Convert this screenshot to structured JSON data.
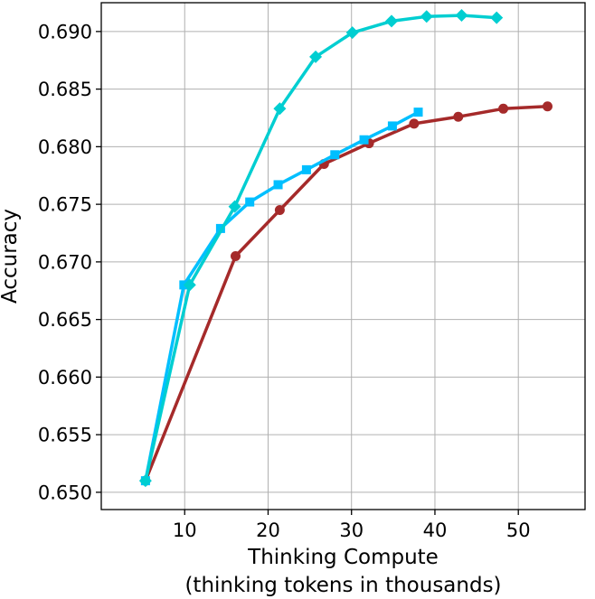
{
  "chart_data": {
    "type": "line",
    "xlabel": "Thinking Compute",
    "xlabel_line2": "(thinking tokens in thousands)",
    "ylabel": "Accuracy",
    "xlim": [
      0,
      58
    ],
    "ylim": [
      0.6485,
      0.6925
    ],
    "xticks": [
      10,
      20,
      30,
      40,
      50
    ],
    "yticks": [
      0.65,
      0.655,
      0.66,
      0.665,
      0.67,
      0.675,
      0.68,
      0.685,
      0.69
    ],
    "ytick_labels": [
      "0.650",
      "0.655",
      "0.660",
      "0.665",
      "0.670",
      "0.675",
      "0.680",
      "0.685",
      "0.690"
    ],
    "grid": true,
    "series": [
      {
        "color": "#a52a2a",
        "marker": "circle",
        "x": [
          5.3,
          16.1,
          21.4,
          26.7,
          32.1,
          37.5,
          42.8,
          48.2,
          53.5
        ],
        "y": [
          0.651,
          0.6705,
          0.6745,
          0.6785,
          0.6803,
          0.682,
          0.6826,
          0.6833,
          0.6835
        ]
      },
      {
        "color": "#00bfff",
        "marker": "square",
        "x": [
          5.3,
          9.9,
          14.3,
          17.8,
          21.2,
          24.6,
          28.0,
          31.5,
          34.9,
          38.0
        ],
        "y": [
          0.651,
          0.668,
          0.6729,
          0.6752,
          0.6767,
          0.678,
          0.6793,
          0.6806,
          0.6818,
          0.683
        ]
      },
      {
        "color": "#00ced1",
        "marker": "diamond",
        "x": [
          5.3,
          10.6,
          16.0,
          21.4,
          25.7,
          30.1,
          34.8,
          39.0,
          43.2,
          47.4
        ],
        "y": [
          0.651,
          0.668,
          0.6748,
          0.6833,
          0.6878,
          0.6899,
          0.6909,
          0.6913,
          0.6914,
          0.6912
        ]
      }
    ]
  }
}
